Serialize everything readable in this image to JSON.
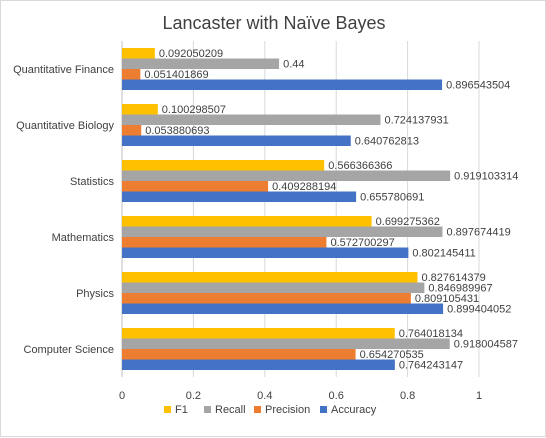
{
  "chart_data": {
    "type": "bar",
    "orientation": "horizontal",
    "title": "Lancaster with Naïve Bayes",
    "xlabel": "",
    "ylabel": "",
    "xlim": [
      0,
      1
    ],
    "x_ticks": [
      0,
      0.2,
      0.4,
      0.6,
      0.8,
      1
    ],
    "x_tick_labels": [
      "0",
      "0.2",
      "0.4",
      "0.6",
      "0.8",
      "1"
    ],
    "grid": true,
    "legend_position": "bottom",
    "categories": [
      "Computer Science",
      "Physics",
      "Mathematics",
      "Statistics",
      "Quantitative Biology",
      "Quantitative Finance"
    ],
    "series": [
      {
        "name": "Accuracy",
        "color": "#4472c4",
        "values": [
          0.764243147,
          0.899404052,
          0.802145411,
          0.655780691,
          0.640762813,
          0.896543504
        ],
        "labels": [
          "0.764243147",
          "0.899404052",
          "0.802145411",
          "0.655780691",
          "0.640762813",
          "0.896543504"
        ]
      },
      {
        "name": "Precision",
        "color": "#ed7d31",
        "values": [
          0.654270535,
          0.809105431,
          0.572700297,
          0.409288194,
          0.053880693,
          0.051401869
        ],
        "labels": [
          "0.654270535",
          "0.809105431",
          "0.572700297",
          "0.409288194",
          "0.053880693",
          "0.051401869"
        ]
      },
      {
        "name": "Recall",
        "color": "#a5a5a5",
        "values": [
          0.918004587,
          0.846989967,
          0.897674419,
          0.919103314,
          0.724137931,
          0.44
        ],
        "labels": [
          "0.918004587",
          "0.846989967",
          "0.897674419",
          "0.919103314",
          "0.724137931",
          "0.44"
        ]
      },
      {
        "name": "F1",
        "color": "#ffc000",
        "values": [
          0.764018134,
          0.827614379,
          0.699275362,
          0.566366366,
          0.100298507,
          0.092050209
        ],
        "labels": [
          "0.764018134",
          "0.827614379",
          "0.699275362",
          "0.566366366",
          "0.100298507",
          "0.092050209"
        ]
      }
    ],
    "legend_order": [
      "F1",
      "Recall",
      "Precision",
      "Accuracy"
    ]
  }
}
